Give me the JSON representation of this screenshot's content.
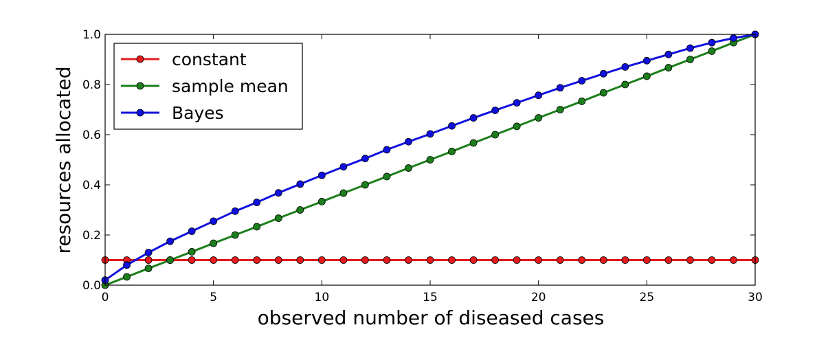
{
  "chart_data": {
    "type": "line",
    "xlabel": "observed number of diseased cases",
    "ylabel": "resources allocated",
    "xlim": [
      0,
      30
    ],
    "ylim": [
      0.0,
      1.0
    ],
    "xticks": [
      "0",
      "5",
      "10",
      "15",
      "20",
      "25",
      "30"
    ],
    "yticks": [
      "0.0",
      "0.2",
      "0.4",
      "0.6",
      "0.8",
      "1.0"
    ],
    "grid": false,
    "legend_position": "upper-left",
    "x": [
      0,
      1,
      2,
      3,
      4,
      5,
      6,
      7,
      8,
      9,
      10,
      11,
      12,
      13,
      14,
      15,
      16,
      17,
      18,
      19,
      20,
      21,
      22,
      23,
      24,
      25,
      26,
      27,
      28,
      29,
      30
    ],
    "series": [
      {
        "name": "constant",
        "color": "#e41a1c",
        "values": [
          0.1,
          0.1,
          0.1,
          0.1,
          0.1,
          0.1,
          0.1,
          0.1,
          0.1,
          0.1,
          0.1,
          0.1,
          0.1,
          0.1,
          0.1,
          0.1,
          0.1,
          0.1,
          0.1,
          0.1,
          0.1,
          0.1,
          0.1,
          0.1,
          0.1,
          0.1,
          0.1,
          0.1,
          0.1,
          0.1,
          0.1
        ]
      },
      {
        "name": "sample mean",
        "color": "#1b7f1b",
        "values": [
          0.0,
          0.033,
          0.067,
          0.1,
          0.133,
          0.167,
          0.2,
          0.233,
          0.267,
          0.3,
          0.333,
          0.367,
          0.4,
          0.433,
          0.467,
          0.5,
          0.533,
          0.567,
          0.6,
          0.633,
          0.667,
          0.7,
          0.733,
          0.767,
          0.8,
          0.833,
          0.867,
          0.9,
          0.933,
          0.967,
          1.0
        ]
      },
      {
        "name": "Bayes",
        "color": "#1010e0",
        "values": [
          0.02,
          0.08,
          0.13,
          0.175,
          0.215,
          0.255,
          0.295,
          0.33,
          0.368,
          0.403,
          0.438,
          0.472,
          0.505,
          0.54,
          0.572,
          0.603,
          0.635,
          0.667,
          0.697,
          0.727,
          0.757,
          0.787,
          0.815,
          0.843,
          0.87,
          0.895,
          0.92,
          0.945,
          0.967,
          0.985,
          1.0
        ]
      }
    ]
  }
}
